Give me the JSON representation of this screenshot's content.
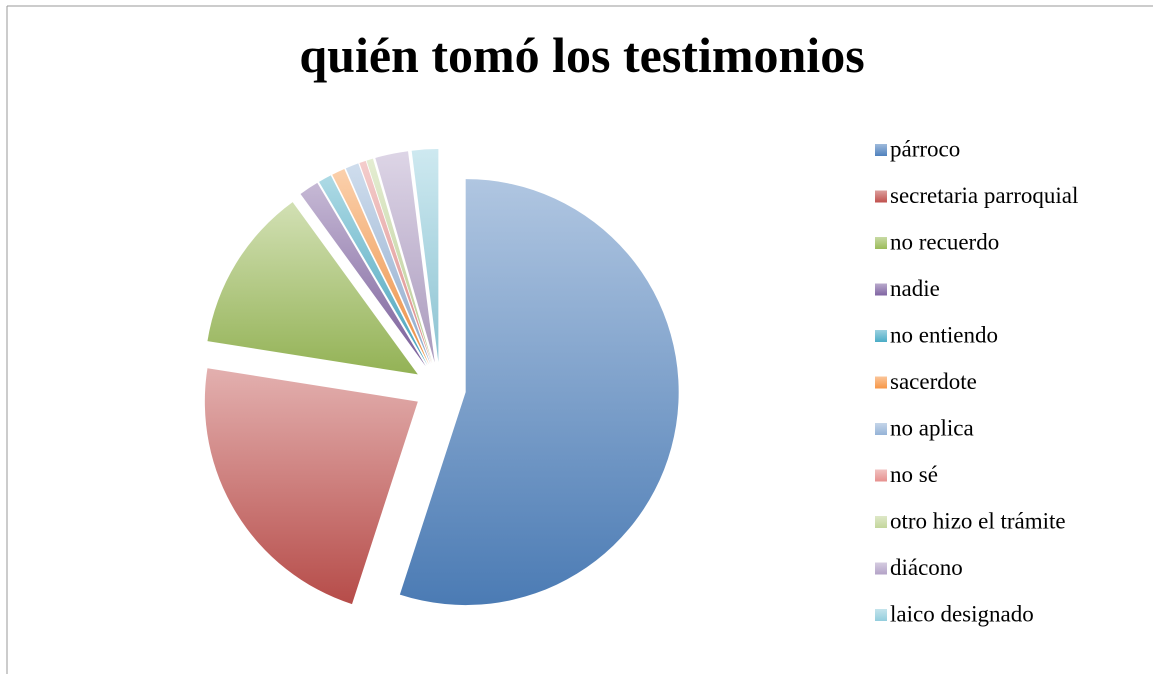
{
  "chart_data": {
    "type": "pie",
    "title": "quién tomó los testimonios",
    "categories": [
      "párroco",
      "secretaria parroquial",
      "no recuerdo",
      "nadie",
      "no entiendo",
      "sacerdote",
      "no aplica",
      "no sé",
      "otro hizo el trámite",
      "diácono",
      "laico designado"
    ],
    "values": [
      55,
      22.5,
      12.5,
      1.5,
      1,
      1,
      1,
      0.5,
      0.5,
      2.5,
      2
    ],
    "colors": [
      "#4f81bd",
      "#c0504d",
      "#9bbb59",
      "#8064a2",
      "#4bacc6",
      "#f79646",
      "#95b3d7",
      "#e6908e",
      "#c3d69b",
      "#b3a2c7",
      "#93cddd"
    ],
    "legend": "right"
  }
}
